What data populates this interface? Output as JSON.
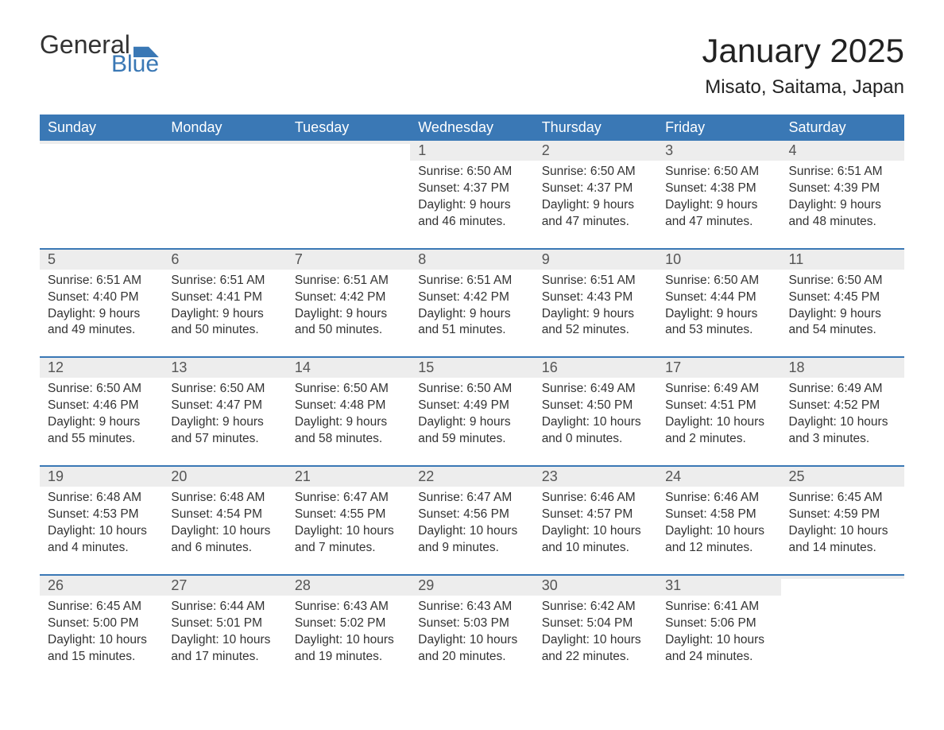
{
  "logo": {
    "top": "General",
    "bottom": "Blue",
    "flag_color": "#3a78b5"
  },
  "title": "January 2025",
  "location": "Misato, Saitama, Japan",
  "colors": {
    "header_bg": "#3a78b5",
    "header_text": "#ffffff",
    "daynum_bg": "#ededed",
    "daynum_text": "#555555",
    "body_text": "#333333",
    "rule": "#3a78b5"
  },
  "fonts": {
    "title_size_pt": 32,
    "location_size_pt": 18,
    "weekday_size_pt": 14,
    "body_size_pt": 12
  },
  "weekdays": [
    "Sunday",
    "Monday",
    "Tuesday",
    "Wednesday",
    "Thursday",
    "Friday",
    "Saturday"
  ],
  "weeks": [
    [
      {
        "n": "",
        "sr": "",
        "ss": "",
        "dl1": "",
        "dl2": ""
      },
      {
        "n": "",
        "sr": "",
        "ss": "",
        "dl1": "",
        "dl2": ""
      },
      {
        "n": "",
        "sr": "",
        "ss": "",
        "dl1": "",
        "dl2": ""
      },
      {
        "n": "1",
        "sr": "Sunrise: 6:50 AM",
        "ss": "Sunset: 4:37 PM",
        "dl1": "Daylight: 9 hours",
        "dl2": "and 46 minutes."
      },
      {
        "n": "2",
        "sr": "Sunrise: 6:50 AM",
        "ss": "Sunset: 4:37 PM",
        "dl1": "Daylight: 9 hours",
        "dl2": "and 47 minutes."
      },
      {
        "n": "3",
        "sr": "Sunrise: 6:50 AM",
        "ss": "Sunset: 4:38 PM",
        "dl1": "Daylight: 9 hours",
        "dl2": "and 47 minutes."
      },
      {
        "n": "4",
        "sr": "Sunrise: 6:51 AM",
        "ss": "Sunset: 4:39 PM",
        "dl1": "Daylight: 9 hours",
        "dl2": "and 48 minutes."
      }
    ],
    [
      {
        "n": "5",
        "sr": "Sunrise: 6:51 AM",
        "ss": "Sunset: 4:40 PM",
        "dl1": "Daylight: 9 hours",
        "dl2": "and 49 minutes."
      },
      {
        "n": "6",
        "sr": "Sunrise: 6:51 AM",
        "ss": "Sunset: 4:41 PM",
        "dl1": "Daylight: 9 hours",
        "dl2": "and 50 minutes."
      },
      {
        "n": "7",
        "sr": "Sunrise: 6:51 AM",
        "ss": "Sunset: 4:42 PM",
        "dl1": "Daylight: 9 hours",
        "dl2": "and 50 minutes."
      },
      {
        "n": "8",
        "sr": "Sunrise: 6:51 AM",
        "ss": "Sunset: 4:42 PM",
        "dl1": "Daylight: 9 hours",
        "dl2": "and 51 minutes."
      },
      {
        "n": "9",
        "sr": "Sunrise: 6:51 AM",
        "ss": "Sunset: 4:43 PM",
        "dl1": "Daylight: 9 hours",
        "dl2": "and 52 minutes."
      },
      {
        "n": "10",
        "sr": "Sunrise: 6:50 AM",
        "ss": "Sunset: 4:44 PM",
        "dl1": "Daylight: 9 hours",
        "dl2": "and 53 minutes."
      },
      {
        "n": "11",
        "sr": "Sunrise: 6:50 AM",
        "ss": "Sunset: 4:45 PM",
        "dl1": "Daylight: 9 hours",
        "dl2": "and 54 minutes."
      }
    ],
    [
      {
        "n": "12",
        "sr": "Sunrise: 6:50 AM",
        "ss": "Sunset: 4:46 PM",
        "dl1": "Daylight: 9 hours",
        "dl2": "and 55 minutes."
      },
      {
        "n": "13",
        "sr": "Sunrise: 6:50 AM",
        "ss": "Sunset: 4:47 PM",
        "dl1": "Daylight: 9 hours",
        "dl2": "and 57 minutes."
      },
      {
        "n": "14",
        "sr": "Sunrise: 6:50 AM",
        "ss": "Sunset: 4:48 PM",
        "dl1": "Daylight: 9 hours",
        "dl2": "and 58 minutes."
      },
      {
        "n": "15",
        "sr": "Sunrise: 6:50 AM",
        "ss": "Sunset: 4:49 PM",
        "dl1": "Daylight: 9 hours",
        "dl2": "and 59 minutes."
      },
      {
        "n": "16",
        "sr": "Sunrise: 6:49 AM",
        "ss": "Sunset: 4:50 PM",
        "dl1": "Daylight: 10 hours",
        "dl2": "and 0 minutes."
      },
      {
        "n": "17",
        "sr": "Sunrise: 6:49 AM",
        "ss": "Sunset: 4:51 PM",
        "dl1": "Daylight: 10 hours",
        "dl2": "and 2 minutes."
      },
      {
        "n": "18",
        "sr": "Sunrise: 6:49 AM",
        "ss": "Sunset: 4:52 PM",
        "dl1": "Daylight: 10 hours",
        "dl2": "and 3 minutes."
      }
    ],
    [
      {
        "n": "19",
        "sr": "Sunrise: 6:48 AM",
        "ss": "Sunset: 4:53 PM",
        "dl1": "Daylight: 10 hours",
        "dl2": "and 4 minutes."
      },
      {
        "n": "20",
        "sr": "Sunrise: 6:48 AM",
        "ss": "Sunset: 4:54 PM",
        "dl1": "Daylight: 10 hours",
        "dl2": "and 6 minutes."
      },
      {
        "n": "21",
        "sr": "Sunrise: 6:47 AM",
        "ss": "Sunset: 4:55 PM",
        "dl1": "Daylight: 10 hours",
        "dl2": "and 7 minutes."
      },
      {
        "n": "22",
        "sr": "Sunrise: 6:47 AM",
        "ss": "Sunset: 4:56 PM",
        "dl1": "Daylight: 10 hours",
        "dl2": "and 9 minutes."
      },
      {
        "n": "23",
        "sr": "Sunrise: 6:46 AM",
        "ss": "Sunset: 4:57 PM",
        "dl1": "Daylight: 10 hours",
        "dl2": "and 10 minutes."
      },
      {
        "n": "24",
        "sr": "Sunrise: 6:46 AM",
        "ss": "Sunset: 4:58 PM",
        "dl1": "Daylight: 10 hours",
        "dl2": "and 12 minutes."
      },
      {
        "n": "25",
        "sr": "Sunrise: 6:45 AM",
        "ss": "Sunset: 4:59 PM",
        "dl1": "Daylight: 10 hours",
        "dl2": "and 14 minutes."
      }
    ],
    [
      {
        "n": "26",
        "sr": "Sunrise: 6:45 AM",
        "ss": "Sunset: 5:00 PM",
        "dl1": "Daylight: 10 hours",
        "dl2": "and 15 minutes."
      },
      {
        "n": "27",
        "sr": "Sunrise: 6:44 AM",
        "ss": "Sunset: 5:01 PM",
        "dl1": "Daylight: 10 hours",
        "dl2": "and 17 minutes."
      },
      {
        "n": "28",
        "sr": "Sunrise: 6:43 AM",
        "ss": "Sunset: 5:02 PM",
        "dl1": "Daylight: 10 hours",
        "dl2": "and 19 minutes."
      },
      {
        "n": "29",
        "sr": "Sunrise: 6:43 AM",
        "ss": "Sunset: 5:03 PM",
        "dl1": "Daylight: 10 hours",
        "dl2": "and 20 minutes."
      },
      {
        "n": "30",
        "sr": "Sunrise: 6:42 AM",
        "ss": "Sunset: 5:04 PM",
        "dl1": "Daylight: 10 hours",
        "dl2": "and 22 minutes."
      },
      {
        "n": "31",
        "sr": "Sunrise: 6:41 AM",
        "ss": "Sunset: 5:06 PM",
        "dl1": "Daylight: 10 hours",
        "dl2": "and 24 minutes."
      },
      {
        "n": "",
        "sr": "",
        "ss": "",
        "dl1": "",
        "dl2": ""
      }
    ]
  ]
}
